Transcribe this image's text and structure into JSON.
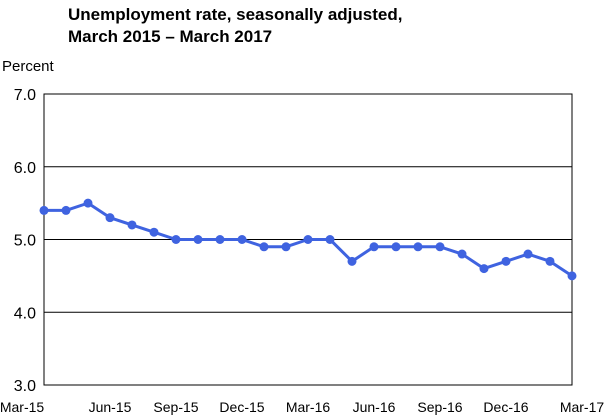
{
  "chart_data": {
    "type": "line",
    "title_line1": "Unemployment rate, seasonally adjusted,",
    "title_line2": "March 2015 – March 2017",
    "ylabel": "Percent",
    "xlabel": "",
    "ylim": [
      3.0,
      7.0
    ],
    "yticks": [
      "3.0",
      "4.0",
      "5.0",
      "6.0",
      "7.0"
    ],
    "x_tick_labels": [
      "Mar-15",
      "Jun-15",
      "Sep-15",
      "Dec-15",
      "Mar-16",
      "Jun-16",
      "Sep-16",
      "Dec-16",
      "Mar-17"
    ],
    "x": [
      "Mar-15",
      "Apr-15",
      "May-15",
      "Jun-15",
      "Jul-15",
      "Aug-15",
      "Sep-15",
      "Oct-15",
      "Nov-15",
      "Dec-15",
      "Jan-16",
      "Feb-16",
      "Mar-16",
      "Apr-16",
      "May-16",
      "Jun-16",
      "Jul-16",
      "Aug-16",
      "Sep-16",
      "Oct-16",
      "Nov-16",
      "Dec-16",
      "Jan-17",
      "Feb-17",
      "Mar-17"
    ],
    "series": [
      {
        "values": [
          5.4,
          5.4,
          5.5,
          5.3,
          5.2,
          5.1,
          5.0,
          5.0,
          5.0,
          5.0,
          4.9,
          4.9,
          5.0,
          5.0,
          4.7,
          4.9,
          4.9,
          4.9,
          4.9,
          4.8,
          4.6,
          4.7,
          4.8,
          4.7,
          4.5
        ],
        "color": "#3f63e0"
      }
    ],
    "grid": true,
    "gridline_color": "#000000"
  }
}
